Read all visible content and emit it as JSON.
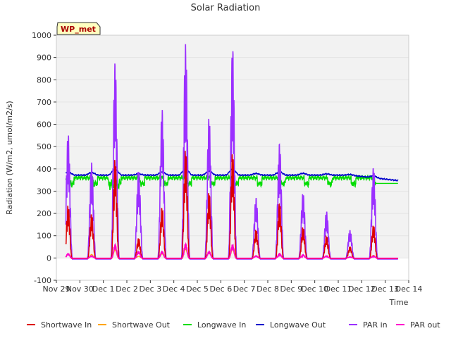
{
  "chart_data": {
    "type": "line",
    "title": "Solar Radiation",
    "xlabel": "Time",
    "ylabel": "Radiation (W/m2, umol/m2/s)",
    "ylim": [
      -100,
      1000
    ],
    "xlim": [
      0,
      15
    ],
    "yticks": [
      -100,
      0,
      100,
      200,
      300,
      400,
      500,
      600,
      700,
      800,
      900,
      1000
    ],
    "xticks": [
      "Nov 29",
      "Nov 30",
      "Dec 1",
      "Dec 2",
      "Dec 3",
      "Dec 4",
      "Dec 5",
      "Dec 6",
      "Dec 7",
      "Dec 8",
      "Dec 9",
      "Dec 10",
      "Dec 11",
      "Dec 12",
      "Dec 13",
      "Dec 14"
    ],
    "grid": "horizontal bands",
    "legend_placement": "bottom",
    "annotation": "WP_met",
    "daily_peaks": {
      "days": [
        0.5,
        1.5,
        2.5,
        3.5,
        4.5,
        5.5,
        6.5,
        7.5,
        8.5,
        9.5,
        10.5,
        11.5,
        12.5,
        13.5
      ],
      "shortwave_in": [
        240,
        200,
        450,
        90,
        230,
        495,
        300,
        480,
        130,
        250,
        140,
        100,
        50,
        150
      ],
      "par_in": [
        560,
        430,
        880,
        400,
        670,
        965,
        635,
        950,
        270,
        515,
        295,
        210,
        125,
        410
      ],
      "par_out": [
        20,
        10,
        60,
        30,
        30,
        65,
        30,
        60,
        10,
        20,
        15,
        10,
        5,
        10
      ]
    },
    "series": [
      {
        "name": "Shortwave In",
        "color": "#dd0000"
      },
      {
        "name": "Shortwave Out",
        "color": "#ffa500"
      },
      {
        "name": "Longwave In",
        "color": "#00dd00"
      },
      {
        "name": "Longwave Out",
        "color": "#0000cc"
      },
      {
        "name": "PAR in",
        "color": "#9b30ff"
      },
      {
        "name": "PAR out",
        "color": "#ff00cc"
      }
    ]
  }
}
